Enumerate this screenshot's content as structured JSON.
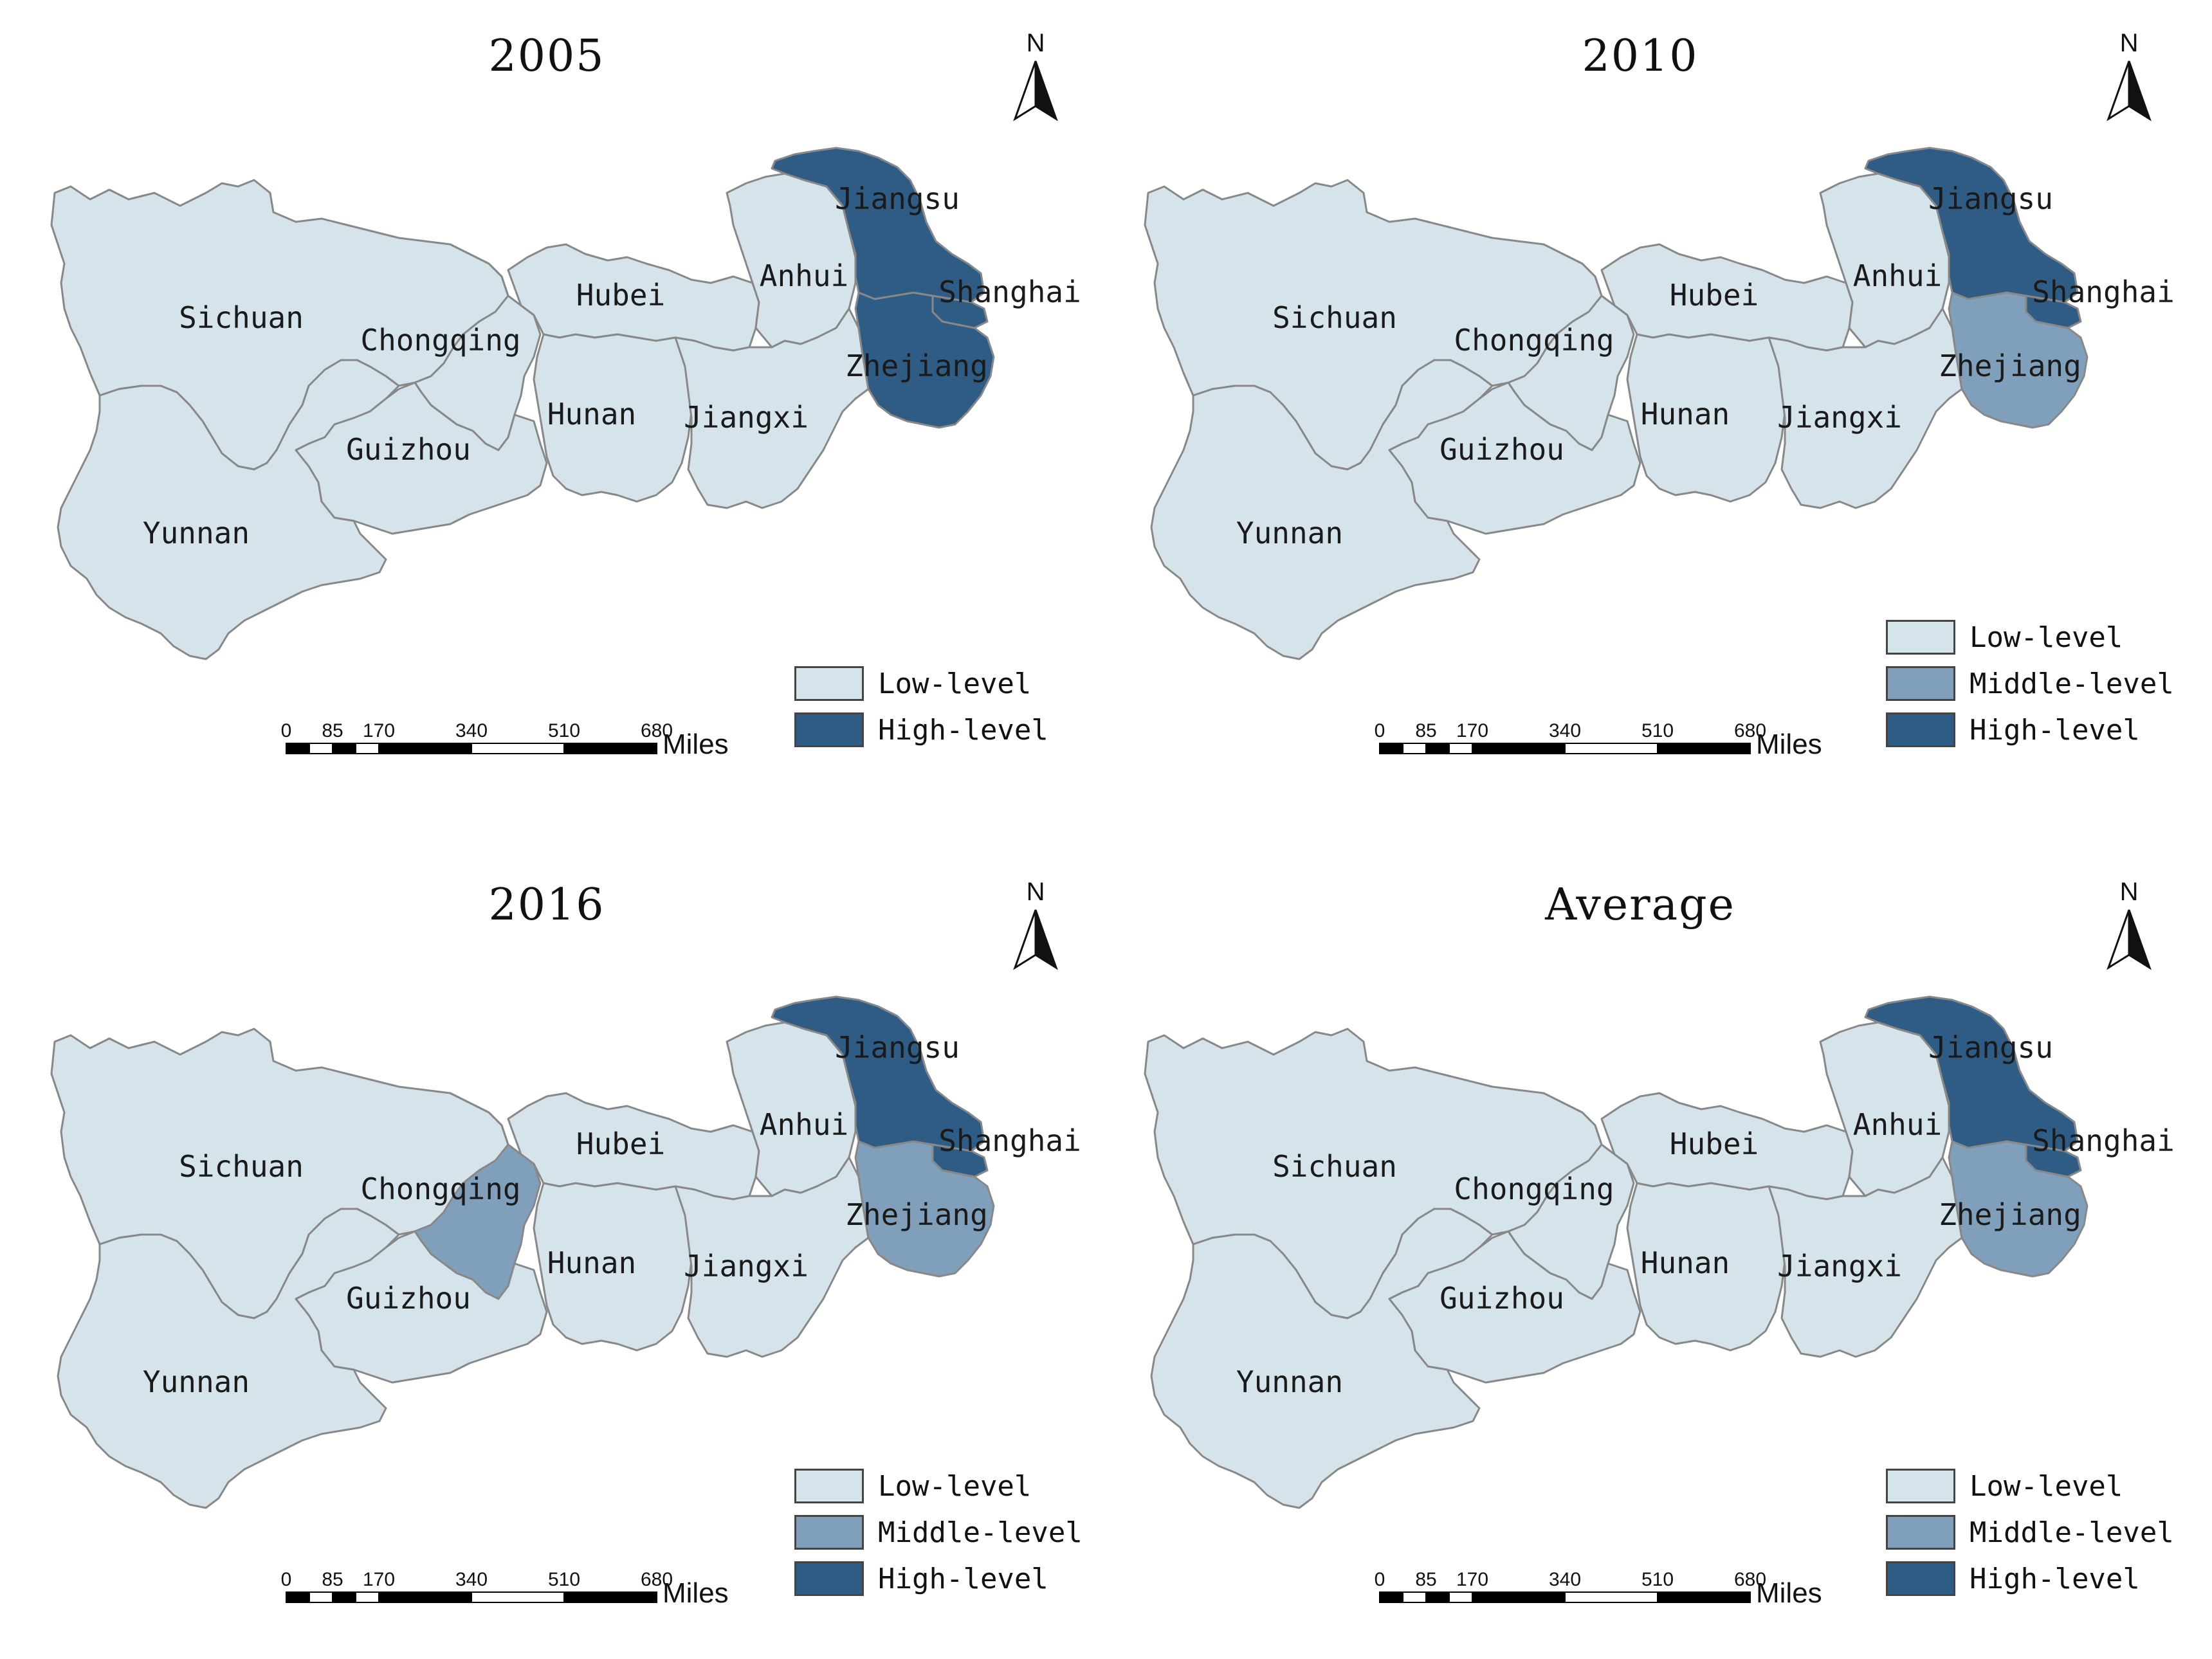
{
  "colors": {
    "low": "#d5e4ea",
    "middle": "#7f9fbb",
    "high": "#2f5c85",
    "border": "#888888"
  },
  "north_label": "N",
  "scalebar": {
    "ticks": [
      "0",
      "85",
      "170",
      "340",
      "510",
      "680"
    ],
    "unit": "Miles"
  },
  "legend_labels": {
    "low": "Low-level",
    "middle": "Middle-level",
    "high": "High-level"
  },
  "province_names": {
    "sichuan": "Sichuan",
    "chongqing": "Chongqing",
    "hubei": "Hubei",
    "anhui": "Anhui",
    "jiangsu": "Jiangsu",
    "shanghai": "Shanghai",
    "zhejiang": "Zhejiang",
    "hunan": "Hunan",
    "jiangxi": "Jiangxi",
    "guizhou": "Guizhou",
    "yunnan": "Yunnan"
  },
  "maps": [
    {
      "title": "2005",
      "legend": [
        "low",
        "high"
      ],
      "levels": {
        "sichuan": "low",
        "chongqing": "low",
        "hubei": "low",
        "anhui": "low",
        "jiangsu": "high",
        "shanghai": "high",
        "zhejiang": "high",
        "hunan": "low",
        "jiangxi": "low",
        "guizhou": "low",
        "yunnan": "low"
      }
    },
    {
      "title": "2010",
      "legend": [
        "low",
        "middle",
        "high"
      ],
      "levels": {
        "sichuan": "low",
        "chongqing": "low",
        "hubei": "low",
        "anhui": "low",
        "jiangsu": "high",
        "shanghai": "high",
        "zhejiang": "middle",
        "hunan": "low",
        "jiangxi": "low",
        "guizhou": "low",
        "yunnan": "low"
      }
    },
    {
      "title": "2016",
      "legend": [
        "low",
        "middle",
        "high"
      ],
      "levels": {
        "sichuan": "low",
        "chongqing": "middle",
        "hubei": "low",
        "anhui": "low",
        "jiangsu": "high",
        "shanghai": "high",
        "zhejiang": "middle",
        "hunan": "low",
        "jiangxi": "low",
        "guizhou": "low",
        "yunnan": "low"
      }
    },
    {
      "title": "Average",
      "legend": [
        "low",
        "middle",
        "high"
      ],
      "levels": {
        "sichuan": "low",
        "chongqing": "low",
        "hubei": "low",
        "anhui": "low",
        "jiangsu": "high",
        "shanghai": "high",
        "zhejiang": "middle",
        "hunan": "low",
        "jiangxi": "low",
        "guizhou": "low",
        "yunnan": "low"
      }
    }
  ]
}
